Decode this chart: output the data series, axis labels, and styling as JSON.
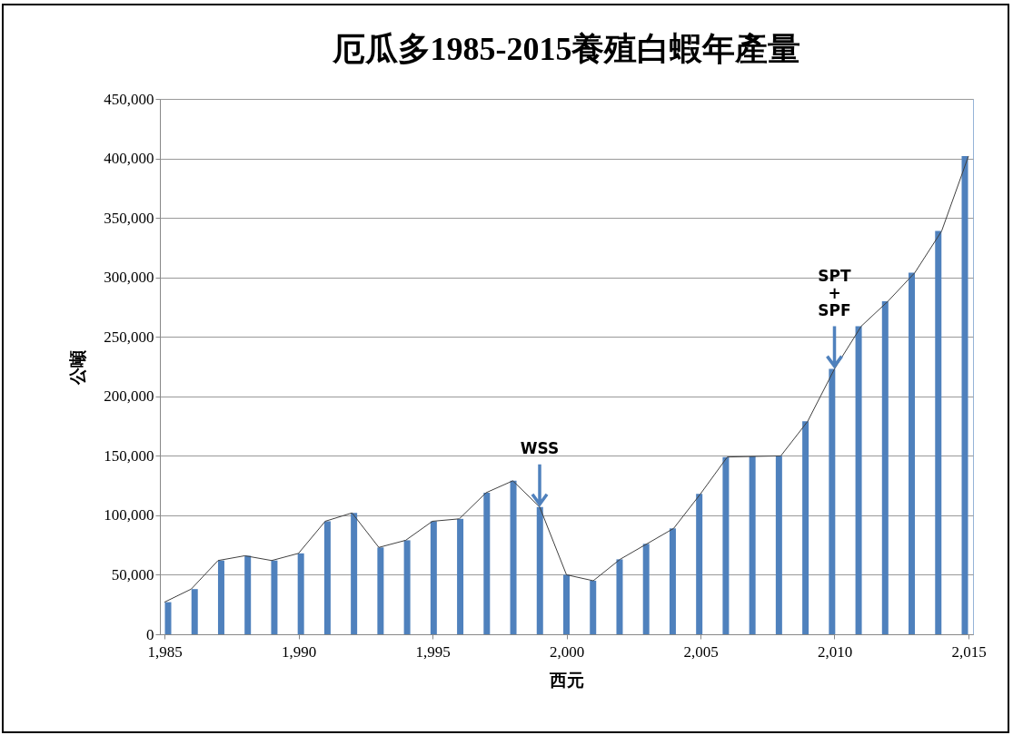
{
  "chart_data": {
    "type": "bar",
    "title": "厄瓜多1985-2015養殖白蝦年產量",
    "xlabel": "西元",
    "ylabel": "公噸",
    "x": [
      1985,
      1986,
      1987,
      1988,
      1989,
      1990,
      1991,
      1992,
      1993,
      1994,
      1995,
      1996,
      1997,
      1998,
      1999,
      2000,
      2001,
      2002,
      2003,
      2004,
      2005,
      2006,
      2007,
      2008,
      2009,
      2010,
      2011,
      2012,
      2013,
      2014,
      2015
    ],
    "series": [
      {
        "color": "#4f81bd",
        "values": [
          27000,
          38000,
          62000,
          66000,
          62000,
          68000,
          95000,
          102000,
          73000,
          79000,
          95000,
          97000,
          119000,
          129000,
          107000,
          50000,
          45000,
          63000,
          76000,
          89000,
          118000,
          149000,
          149500,
          150000,
          179000,
          223000,
          259000,
          280000,
          304000,
          339000,
          402000
        ]
      },
      {
        "type": "line",
        "color": "#404040",
        "values": [
          27000,
          38000,
          62000,
          66000,
          62000,
          68000,
          95000,
          102000,
          73000,
          79000,
          95000,
          97000,
          119000,
          129000,
          107000,
          50000,
          45000,
          63000,
          76000,
          89000,
          118000,
          149000,
          149500,
          150000,
          179000,
          223000,
          259000,
          280000,
          304000,
          339000,
          402000
        ]
      }
    ],
    "xlim": [
      1985,
      2015
    ],
    "xticks": [
      {
        "value": 1985,
        "label": "1,985"
      },
      {
        "value": 1990,
        "label": "1,990"
      },
      {
        "value": 1995,
        "label": "1,995"
      },
      {
        "value": 2000,
        "label": "2,000"
      },
      {
        "value": 2005,
        "label": "2,005"
      },
      {
        "value": 2010,
        "label": "2,010"
      },
      {
        "value": 2015,
        "label": "2,015"
      }
    ],
    "ylim": [
      0,
      450000
    ],
    "yticks": [
      0,
      {
        "value": 50000,
        "label": "50,000"
      },
      {
        "value": 100000,
        "label": "100,000"
      },
      {
        "value": 150000,
        "label": "150,000"
      },
      {
        "value": 200000,
        "label": "200,000"
      },
      {
        "value": 250000,
        "label": "250,000"
      },
      {
        "value": 300000,
        "label": "300,000"
      },
      {
        "value": 350000,
        "label": "350,000"
      },
      {
        "value": 400000,
        "label": "400,000"
      },
      {
        "value": 450000,
        "label": "450,000"
      }
    ],
    "grid": "y",
    "annotations": [
      {
        "text": "WSS",
        "x": 1999,
        "y": 107000
      },
      {
        "text": "SPT + SPF",
        "x": 2010,
        "y": 223000
      }
    ]
  }
}
